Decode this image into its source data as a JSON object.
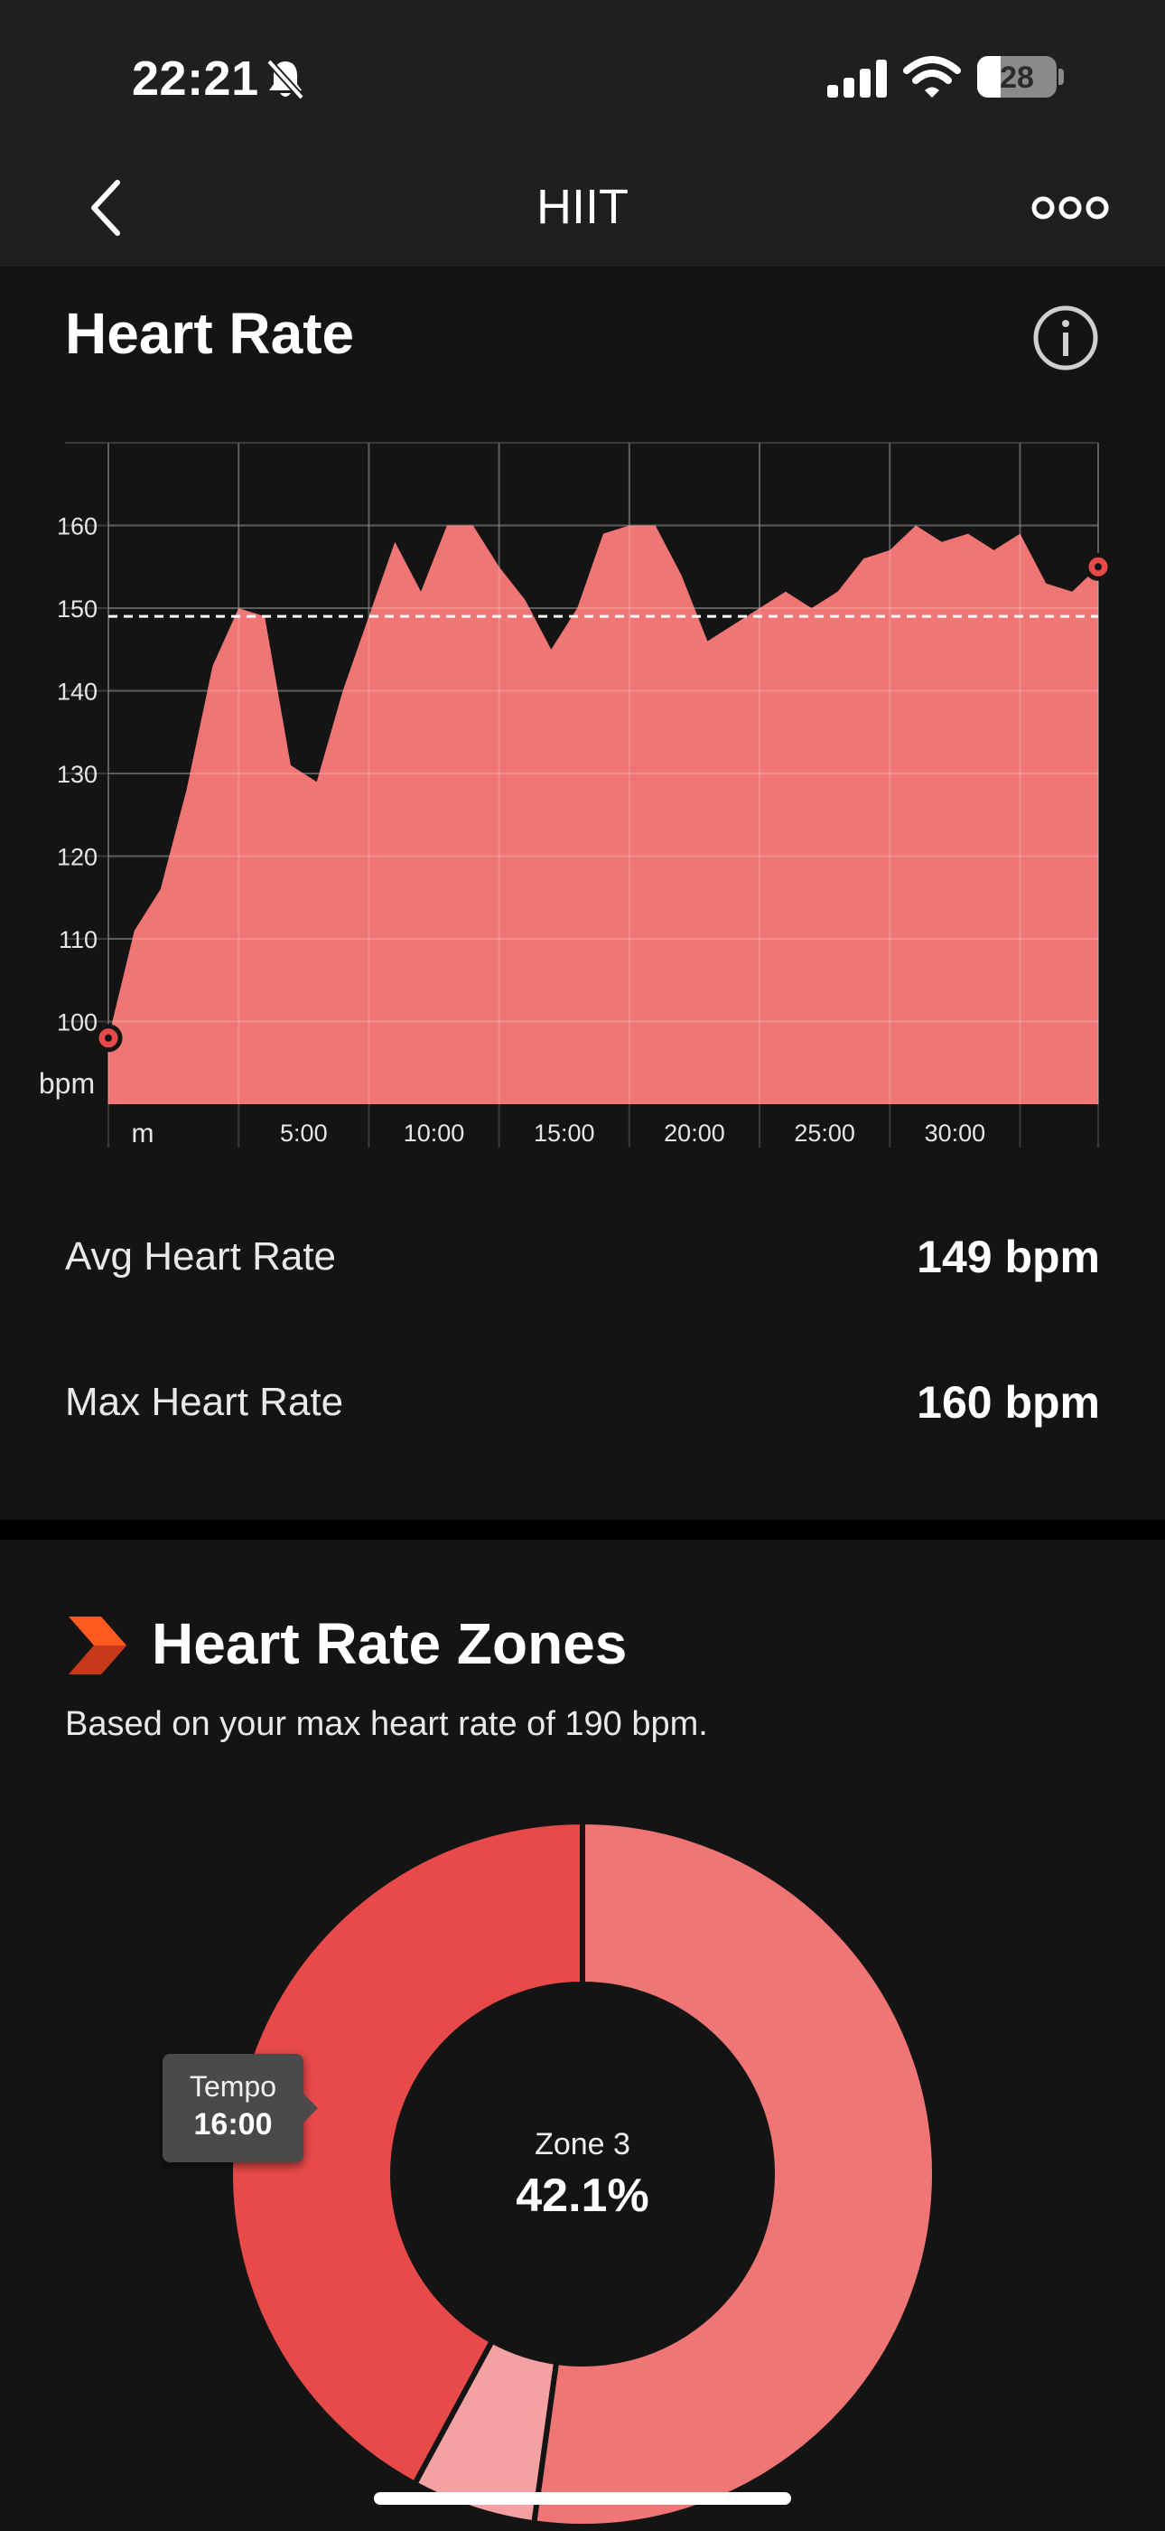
{
  "status_bar": {
    "time": "22:21",
    "battery": "28"
  },
  "nav": {
    "title": "HIIT"
  },
  "heart_rate": {
    "title": "Heart Rate",
    "avg_label": "Avg Heart Rate",
    "avg_value": "149 bpm",
    "max_label": "Max Heart Rate",
    "max_value": "160 bpm"
  },
  "zones": {
    "title": "Heart Rate Zones",
    "subtitle": "Based on your max heart rate of 190 bpm.",
    "tooltip_label": "Tempo",
    "tooltip_value": "16:00",
    "center_label": "Zone 3",
    "center_value": "42.1%"
  },
  "colors": {
    "area": "#f07575",
    "zone3": "#e84a4a",
    "zone_light": "#f4a1a3",
    "accent_orange": "#ff5a1f"
  },
  "chart_data": [
    {
      "type": "area",
      "ylabel": "bpm",
      "xlabel": "m",
      "ylim": [
        90,
        170
      ],
      "yticks": [
        100,
        110,
        120,
        130,
        140,
        150,
        160
      ],
      "xlim": [
        0,
        38
      ],
      "xticks": [
        "5:00",
        "10:00",
        "15:00",
        "20:00",
        "25:00",
        "30:00"
      ],
      "avg_line": 149,
      "grid": true,
      "x": [
        0,
        1,
        2,
        3,
        4,
        5,
        6,
        7,
        8,
        9,
        10,
        11,
        12,
        13,
        14,
        15,
        16,
        17,
        18,
        19,
        20,
        21,
        22,
        23,
        24,
        25,
        26,
        27,
        28,
        29,
        30,
        31,
        32,
        33,
        34,
        35,
        36,
        37,
        38
      ],
      "values": [
        98,
        111,
        116,
        128,
        143,
        150,
        149,
        131,
        129,
        140,
        149,
        158,
        152,
        160,
        160,
        155,
        151,
        145,
        150,
        159,
        160,
        160,
        154,
        146,
        148,
        150,
        152,
        150,
        152,
        156,
        157,
        160,
        158,
        159,
        157,
        159,
        153,
        152,
        155
      ]
    },
    {
      "type": "pie",
      "series": [
        {
          "name": "Zone 3",
          "value": 42.1
        },
        {
          "value": 52.2
        },
        {
          "value": 5.7
        }
      ]
    }
  ]
}
